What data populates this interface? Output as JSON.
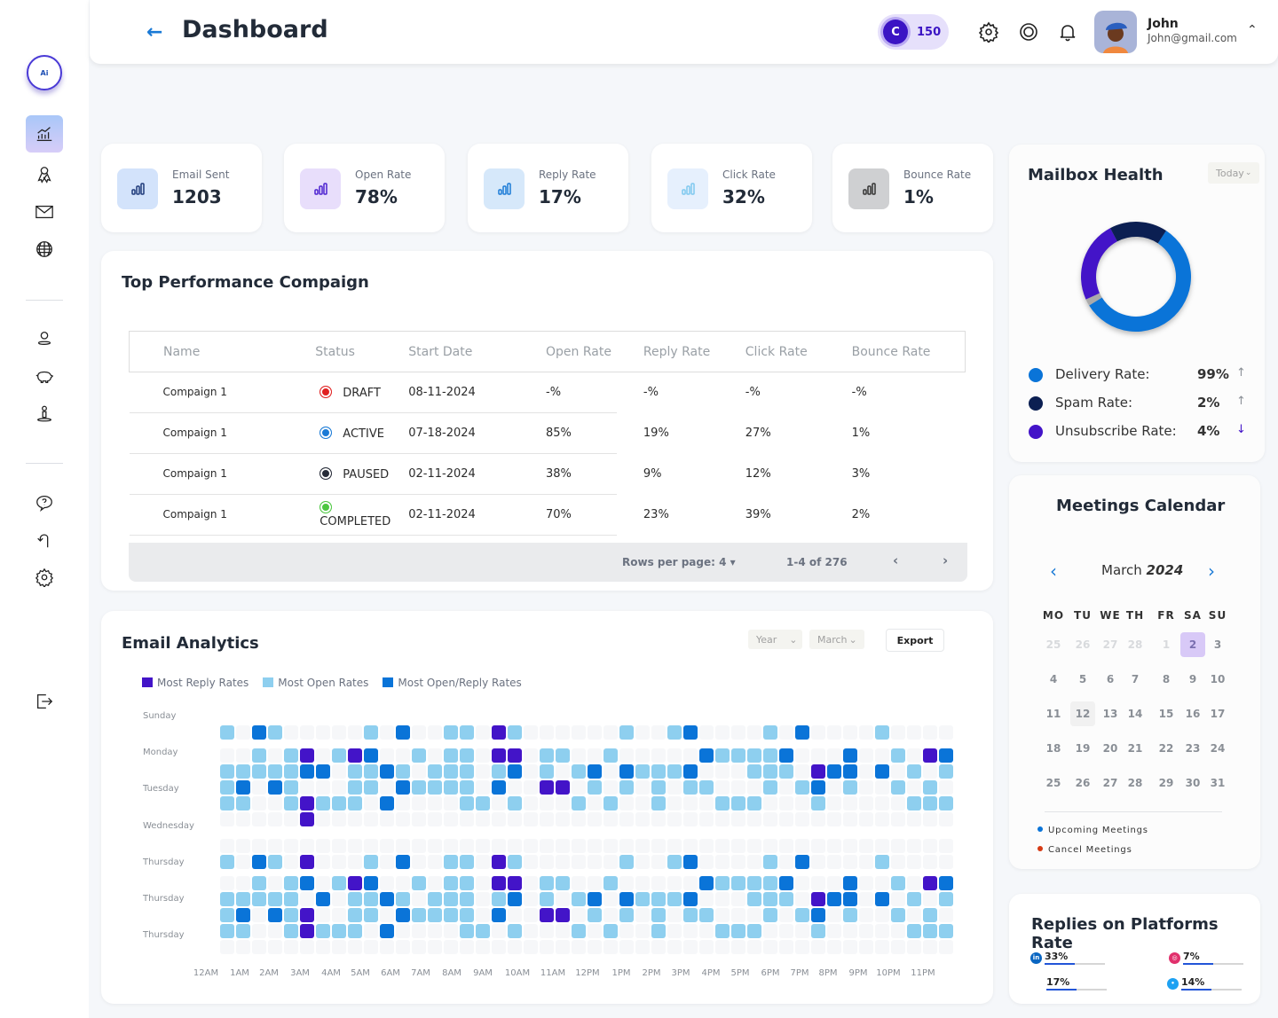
{
  "header": {
    "title": "Dashboard",
    "credits": {
      "letter": "C",
      "value": "150"
    },
    "user": {
      "name": "John",
      "email": "John@gmail.com"
    }
  },
  "sidebar": {
    "logo_text": "Ai",
    "items": [
      "analytics-icon",
      "ribbon-icon",
      "mail-icon",
      "globe-icon",
      "user-icon",
      "piggy-bank-icon",
      "person-pin-icon",
      "help-icon",
      "undo-icon",
      "gear-icon",
      "logout-icon"
    ],
    "active": "analytics"
  },
  "stats": [
    {
      "label": "Email Sent",
      "value": "1203",
      "bg": "#d3e3fb",
      "stroke": "#1e3a7a"
    },
    {
      "label": "Open Rate",
      "value": "78%",
      "bg": "#e8defb",
      "stroke": "#4c22d0"
    },
    {
      "label": "Reply Rate",
      "value": "17%",
      "bg": "#d6e8fa",
      "stroke": "#1a7ad6"
    },
    {
      "label": "Click Rate",
      "value": "32%",
      "bg": "#e6f0fd",
      "stroke": "#7fc8ef"
    },
    {
      "label": "Bounce Rate",
      "value": "1%",
      "bg": "#cfd0d2",
      "stroke": "#333"
    }
  ],
  "campaigns": {
    "title": "Top  Performance Compaign",
    "columns": [
      "Name",
      "Status",
      "Start Date",
      "Open Rate",
      "Reply Rate",
      "Click Rate",
      "Bounce Rate"
    ],
    "rows": [
      {
        "name": "Compaign 1",
        "status": "DRAFT",
        "status_color": "#e02020",
        "start": "08-11-2024",
        "open": "-%",
        "reply": "-%",
        "click": "-%",
        "bounce": "-%"
      },
      {
        "name": "Compaign 1",
        "status": "ACTIVE",
        "status_color": "#1a7ad6",
        "start": "07-18-2024",
        "open": "85%",
        "reply": "19%",
        "click": "27%",
        "bounce": "1%"
      },
      {
        "name": "Compaign 1",
        "status": "PAUSED",
        "status_color": "#262b38",
        "start": "02-11-2024",
        "open": "38%",
        "reply": "9%",
        "click": "12%",
        "bounce": "3%"
      },
      {
        "name": "Compaign 1",
        "status": "COMPLETED",
        "status_color": "#4cc740",
        "start": "02-11-2024",
        "open": "70%",
        "reply": "23%",
        "click": "39%",
        "bounce": "2%"
      }
    ],
    "pager": {
      "rows_per_page": "Rows per page: 4",
      "range": "1-4 of 276"
    }
  },
  "analytics": {
    "title": "Email Analytics",
    "year_select": "Year",
    "month_select": "March",
    "export_label": "Export",
    "legend": [
      {
        "label": "Most Reply Rates",
        "color": "#4314c8"
      },
      {
        "label": "Most Open Rates",
        "color": "#8ecfef"
      },
      {
        "label": "Most Open/Reply Rates",
        "color": "#0a74d8"
      }
    ],
    "day_labels": [
      "Sunday",
      "Monday",
      "Tuesday",
      "Wednesday",
      "Thursday",
      "Thursday",
      "Thursday"
    ],
    "hour_labels": [
      "12AM",
      "1AM",
      "2AM",
      "3AM",
      "4AM",
      "5AM",
      "6AM",
      "7AM",
      "8AM",
      "9AM",
      "10AM",
      "11AM",
      "12PM",
      "1PM",
      "2PM",
      "3PM",
      "4PM",
      "5PM",
      "6PM",
      "7PM",
      "8PM",
      "9PM",
      "10PM",
      "11PM"
    ],
    "colors": [
      "#f6f7f9",
      "#8ecfef",
      "#0a74d8",
      "#4314c8"
    ],
    "grid": [
      "1021000001020011031000000100120000102000010000",
      "0010130132001011033011001000002111120002001032",
      "1111122011210111012010120211120001110322020101",
      "1202100011021111020033010101011000101201001010",
      "1100131110200001101000101001000111000100000111",
      "0000030000000000000000000000000000000000000000",
      "0000000000000000000000000000000000000000000000",
      "1021030001020011031000000100120000102000010000",
      "0010120132001011033011001000002111120002001032",
      "1111102011210111012010120211120001110322020101",
      "1202130011021111020033010101011000101201001010",
      "1100131110200001101000101001000111000100000111",
      "0000000000000000000000000000000000000000000000"
    ]
  },
  "mailbox_health": {
    "title": "Mailbox Health",
    "period": "Today",
    "items": [
      {
        "label": "Delivery Rate:",
        "value": "99%",
        "trend": "up",
        "color": "#0a74d8",
        "arrow_color": "#8a8f96"
      },
      {
        "label": "Spam Rate:",
        "value": "2%",
        "trend": "up",
        "color": "#0b1f52",
        "arrow_color": "#8a8f96"
      },
      {
        "label": "Unsubscribe Rate:",
        "value": "4%",
        "trend": "down",
        "color": "#4314c8",
        "arrow_color": "#4314c8"
      }
    ],
    "donut": [
      {
        "name": "Delivery",
        "share": 0.57,
        "color": "#0a74d8"
      },
      {
        "name": "Other",
        "share": 0.02,
        "color": "#aaaaaa"
      },
      {
        "name": "Unsubscribe",
        "share": 0.24,
        "color": "#4314c8"
      },
      {
        "name": "Spam",
        "share": 0.17,
        "color": "#0b1f52"
      }
    ]
  },
  "calendar": {
    "title": "Meetings Calendar",
    "month": "March",
    "year": "2024",
    "weekdays": [
      "MO",
      "TU",
      "WE",
      "TH",
      "FR",
      "SA",
      "SU"
    ],
    "weeks": [
      [
        "25",
        "26",
        "27",
        "28",
        "1",
        "2",
        "3"
      ],
      [
        "4",
        "5",
        "6",
        "7",
        "8",
        "9",
        "10"
      ],
      [
        "11",
        "12",
        "13",
        "14",
        "15",
        "16",
        "17"
      ],
      [
        "18",
        "19",
        "20",
        "21",
        "22",
        "23",
        "24"
      ],
      [
        "25",
        "26",
        "27",
        "28",
        "29",
        "30",
        "31"
      ]
    ],
    "selected": "2",
    "today": "12",
    "upcoming_dates": [
      "2",
      "23"
    ],
    "cancel_dates": [
      "12"
    ],
    "legend": [
      {
        "label": "Upcoming Meetings",
        "color": "#0a74d8"
      },
      {
        "label": "Cancel Meetings",
        "color": "#d63a14"
      }
    ]
  },
  "platforms": {
    "title": "Replies on Platforms Rate",
    "items": [
      {
        "name": "linkedin",
        "value": "33%",
        "fill": 0.5
      },
      {
        "name": "instagram",
        "value": "7%",
        "fill": 0.5
      },
      {
        "name": "unknown",
        "value": "17%",
        "fill": 0.5
      },
      {
        "name": "twitter",
        "value": "14%",
        "fill": 0.5
      }
    ]
  }
}
